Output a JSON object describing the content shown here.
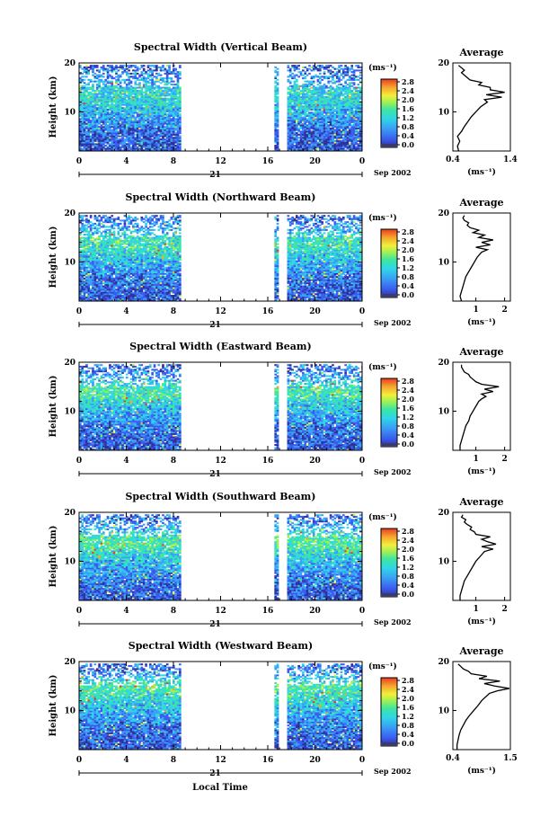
{
  "figure": {
    "bottom_label": "Local Time",
    "panel_ylabel": "Height (km)",
    "date_label": "Sep 2002",
    "day_label": "21",
    "colorbar_unit": "(ms⁻¹)",
    "colorbar_ticks": [
      "2.8",
      "2.4",
      "2.0",
      "1.6",
      "1.2",
      "0.8",
      "0.4",
      "0.0"
    ],
    "avg_title": "Average",
    "avg_unit": "(ms⁻¹)",
    "colors": {
      "scale": [
        "#30309a",
        "#3a5cf0",
        "#3aa0f5",
        "#2fd6e8",
        "#3ee6a0",
        "#9ff055",
        "#f2ef3a",
        "#f6a52e",
        "#ea3b22"
      ],
      "grid": "#000000",
      "background": "#ffffff"
    }
  },
  "chart_data": [
    {
      "type": "heatmap",
      "title": "Spectral Width (Vertical Beam)",
      "xlabel": "Local Time",
      "ylabel": "Height (km)",
      "x_ticks": [
        "0",
        "4",
        "8",
        "12",
        "16",
        "20",
        "0"
      ],
      "y_ticks": [
        "20",
        "10"
      ],
      "xlim": [
        0,
        24
      ],
      "ylim": [
        2,
        20
      ],
      "zlim": [
        0.0,
        2.8
      ],
      "data_gap_hours": [
        [
          8.6,
          16.6
        ],
        [
          17.0,
          17.7
        ]
      ],
      "valid_top_km": 19.5,
      "height_km": [
        2,
        3,
        4,
        5,
        6,
        7,
        8,
        9,
        10,
        11,
        12,
        13,
        14,
        15,
        16,
        17,
        18,
        19
      ],
      "mean_width": [
        0.5,
        0.4,
        0.45,
        0.5,
        0.5,
        0.6,
        0.7,
        0.8,
        0.9,
        1.0,
        1.1,
        1.15,
        1.2,
        1.0,
        0.9,
        0.7,
        0.6,
        0.5
      ],
      "avg_profile": {
        "xlabel": "(ms⁻¹)",
        "x_ticks": [
          "0.4",
          "1.4"
        ],
        "xlim": [
          0.4,
          1.4
        ],
        "y_ticks": [
          "20",
          "10"
        ],
        "ylim": [
          2,
          20
        ],
        "height_km": [
          2,
          3,
          4,
          5,
          6,
          7,
          8,
          9,
          10,
          11,
          12,
          12.5,
          13,
          13.5,
          14,
          14.5,
          15,
          15.5,
          16,
          16.5,
          17,
          17.5,
          18,
          18.5,
          19,
          19.5
        ],
        "width": [
          0.5,
          0.48,
          0.52,
          0.48,
          0.55,
          0.6,
          0.66,
          0.72,
          0.8,
          0.88,
          1.0,
          0.95,
          1.25,
          0.98,
          1.3,
          1.05,
          1.05,
          0.85,
          0.9,
          0.7,
          0.65,
          0.6,
          0.55,
          0.6,
          0.55,
          0.5
        ]
      }
    },
    {
      "type": "heatmap",
      "title": "Spectral Width (Northward Beam)",
      "xlabel": "Local Time",
      "ylabel": "Height (km)",
      "x_ticks": [
        "0",
        "4",
        "8",
        "12",
        "16",
        "20",
        "0"
      ],
      "y_ticks": [
        "20",
        "10"
      ],
      "xlim": [
        0,
        24
      ],
      "ylim": [
        2,
        20
      ],
      "zlim": [
        0.0,
        2.8
      ],
      "data_gap_hours": [
        [
          8.6,
          16.6
        ],
        [
          17.0,
          17.7
        ]
      ],
      "valid_top_km": 19.5,
      "height_km": [
        2,
        3,
        4,
        5,
        6,
        7,
        8,
        9,
        10,
        11,
        12,
        13,
        14,
        15,
        16,
        17,
        18,
        19
      ],
      "mean_width": [
        0.5,
        0.45,
        0.45,
        0.5,
        0.55,
        0.6,
        0.7,
        0.8,
        0.9,
        1.0,
        1.15,
        1.25,
        1.3,
        1.2,
        1.0,
        0.8,
        0.7,
        0.55
      ],
      "avg_profile": {
        "xlabel": "(ms⁻¹)",
        "x_ticks": [
          "1",
          "2"
        ],
        "xlim": [
          0.2,
          2.2
        ],
        "y_ticks": [
          "20",
          "10"
        ],
        "ylim": [
          2,
          20
        ],
        "height_km": [
          2,
          3,
          4,
          5,
          6,
          7,
          8,
          9,
          10,
          11,
          12,
          12.5,
          13,
          13.5,
          14,
          14.5,
          15,
          15.5,
          16,
          16.5,
          17,
          17.5,
          18,
          18.5,
          19,
          19.5
        ],
        "width": [
          0.5,
          0.45,
          0.5,
          0.55,
          0.6,
          0.65,
          0.75,
          0.85,
          0.95,
          1.05,
          1.2,
          1.4,
          1.0,
          1.5,
          1.2,
          1.6,
          1.1,
          1.3,
          0.9,
          1.1,
          0.8,
          0.7,
          0.75,
          0.6,
          0.55,
          0.6
        ]
      }
    },
    {
      "type": "heatmap",
      "title": "Spectral Width (Eastward Beam)",
      "xlabel": "Local Time",
      "ylabel": "Height (km)",
      "x_ticks": [
        "0",
        "4",
        "8",
        "12",
        "16",
        "20",
        "0"
      ],
      "y_ticks": [
        "20",
        "10"
      ],
      "xlim": [
        0,
        24
      ],
      "ylim": [
        2,
        20
      ],
      "zlim": [
        0.0,
        2.8
      ],
      "data_gap_hours": [
        [
          8.6,
          16.6
        ],
        [
          17.0,
          17.7
        ]
      ],
      "valid_top_km": 19.5,
      "height_km": [
        2,
        3,
        4,
        5,
        6,
        7,
        8,
        9,
        10,
        11,
        12,
        13,
        14,
        15,
        16,
        17,
        18,
        19
      ],
      "mean_width": [
        0.45,
        0.45,
        0.5,
        0.5,
        0.55,
        0.6,
        0.7,
        0.8,
        0.9,
        1.0,
        1.1,
        1.3,
        1.35,
        1.25,
        1.0,
        0.8,
        0.7,
        0.55
      ],
      "avg_profile": {
        "xlabel": "(ms⁻¹)",
        "x_ticks": [
          "1",
          "2"
        ],
        "xlim": [
          0.2,
          2.2
        ],
        "y_ticks": [
          "20",
          "10"
        ],
        "ylim": [
          2,
          20
        ],
        "height_km": [
          2,
          3,
          4,
          5,
          6,
          7,
          8,
          9,
          10,
          11,
          12,
          12.5,
          13,
          13.5,
          14,
          14.5,
          15,
          15.5,
          16,
          16.5,
          17,
          17.5,
          18,
          18.5,
          19,
          19.5
        ],
        "width": [
          0.45,
          0.45,
          0.5,
          0.55,
          0.6,
          0.65,
          0.75,
          0.8,
          0.9,
          1.0,
          1.1,
          1.2,
          1.35,
          1.2,
          1.6,
          1.3,
          1.8,
          1.2,
          1.0,
          0.9,
          0.8,
          0.75,
          0.6,
          0.55,
          0.5,
          0.5
        ]
      }
    },
    {
      "type": "heatmap",
      "title": "Spectral Width (Southward Beam)",
      "xlabel": "Local Time",
      "ylabel": "Height (km)",
      "x_ticks": [
        "0",
        "4",
        "8",
        "12",
        "16",
        "20",
        "0"
      ],
      "y_ticks": [
        "20",
        "10"
      ],
      "xlim": [
        0,
        24
      ],
      "ylim": [
        2,
        20
      ],
      "zlim": [
        0.0,
        2.8
      ],
      "data_gap_hours": [
        [
          8.6,
          16.6
        ],
        [
          17.0,
          17.7
        ]
      ],
      "valid_top_km": 19.5,
      "height_km": [
        2,
        3,
        4,
        5,
        6,
        7,
        8,
        9,
        10,
        11,
        12,
        13,
        14,
        15,
        16,
        17,
        18,
        19
      ],
      "mean_width": [
        0.45,
        0.45,
        0.5,
        0.55,
        0.6,
        0.65,
        0.75,
        0.85,
        0.95,
        1.05,
        1.2,
        1.35,
        1.4,
        1.3,
        1.05,
        0.85,
        0.7,
        0.55
      ],
      "avg_profile": {
        "xlabel": "(ms⁻¹)",
        "x_ticks": [
          "1",
          "2"
        ],
        "xlim": [
          0.2,
          2.2
        ],
        "y_ticks": [
          "20",
          "10"
        ],
        "ylim": [
          2,
          20
        ],
        "height_km": [
          2,
          3,
          4,
          5,
          6,
          7,
          8,
          9,
          10,
          11,
          12,
          12.5,
          13,
          13.5,
          14,
          14.5,
          15,
          15.5,
          16,
          16.5,
          17,
          17.5,
          18,
          18.5,
          19,
          19.5
        ],
        "width": [
          0.45,
          0.45,
          0.5,
          0.55,
          0.6,
          0.7,
          0.8,
          0.9,
          1.0,
          1.15,
          1.3,
          1.6,
          1.2,
          1.7,
          1.4,
          1.2,
          1.5,
          1.0,
          0.95,
          0.8,
          0.85,
          0.7,
          0.6,
          0.65,
          0.5,
          0.55
        ]
      }
    },
    {
      "type": "heatmap",
      "title": "Spectral Width (Westward Beam)",
      "xlabel": "Local Time",
      "ylabel": "Height (km)",
      "x_ticks": [
        "0",
        "4",
        "8",
        "12",
        "16",
        "20",
        "0"
      ],
      "y_ticks": [
        "20",
        "10"
      ],
      "xlim": [
        0,
        24
      ],
      "ylim": [
        2,
        20
      ],
      "zlim": [
        0.0,
        2.8
      ],
      "data_gap_hours": [
        [
          8.6,
          16.6
        ],
        [
          17.0,
          17.7
        ]
      ],
      "valid_top_km": 19.5,
      "height_km": [
        2,
        3,
        4,
        5,
        6,
        7,
        8,
        9,
        10,
        11,
        12,
        13,
        14,
        15,
        16,
        17,
        18,
        19
      ],
      "mean_width": [
        0.45,
        0.45,
        0.5,
        0.5,
        0.55,
        0.6,
        0.7,
        0.8,
        0.9,
        1.0,
        1.1,
        1.2,
        1.35,
        1.4,
        1.15,
        0.9,
        0.7,
        0.55
      ],
      "avg_profile": {
        "xlabel": "(ms⁻¹)",
        "x_ticks": [
          "0.4",
          "1.5"
        ],
        "xlim": [
          0.4,
          1.5
        ],
        "y_ticks": [
          "20",
          "10"
        ],
        "ylim": [
          2,
          20
        ],
        "height_km": [
          2,
          3,
          4,
          5,
          6,
          7,
          8,
          9,
          10,
          11,
          12,
          12.5,
          13,
          13.5,
          14,
          14.5,
          15,
          15.5,
          16,
          16.5,
          17,
          17.5,
          18,
          18.5,
          19,
          19.5
        ],
        "width": [
          0.48,
          0.48,
          0.5,
          0.52,
          0.55,
          0.6,
          0.65,
          0.72,
          0.8,
          0.88,
          0.95,
          1.0,
          1.05,
          1.1,
          1.25,
          1.48,
          1.2,
          1.0,
          1.3,
          0.9,
          1.05,
          0.75,
          0.7,
          0.6,
          0.55,
          0.5
        ]
      }
    }
  ]
}
